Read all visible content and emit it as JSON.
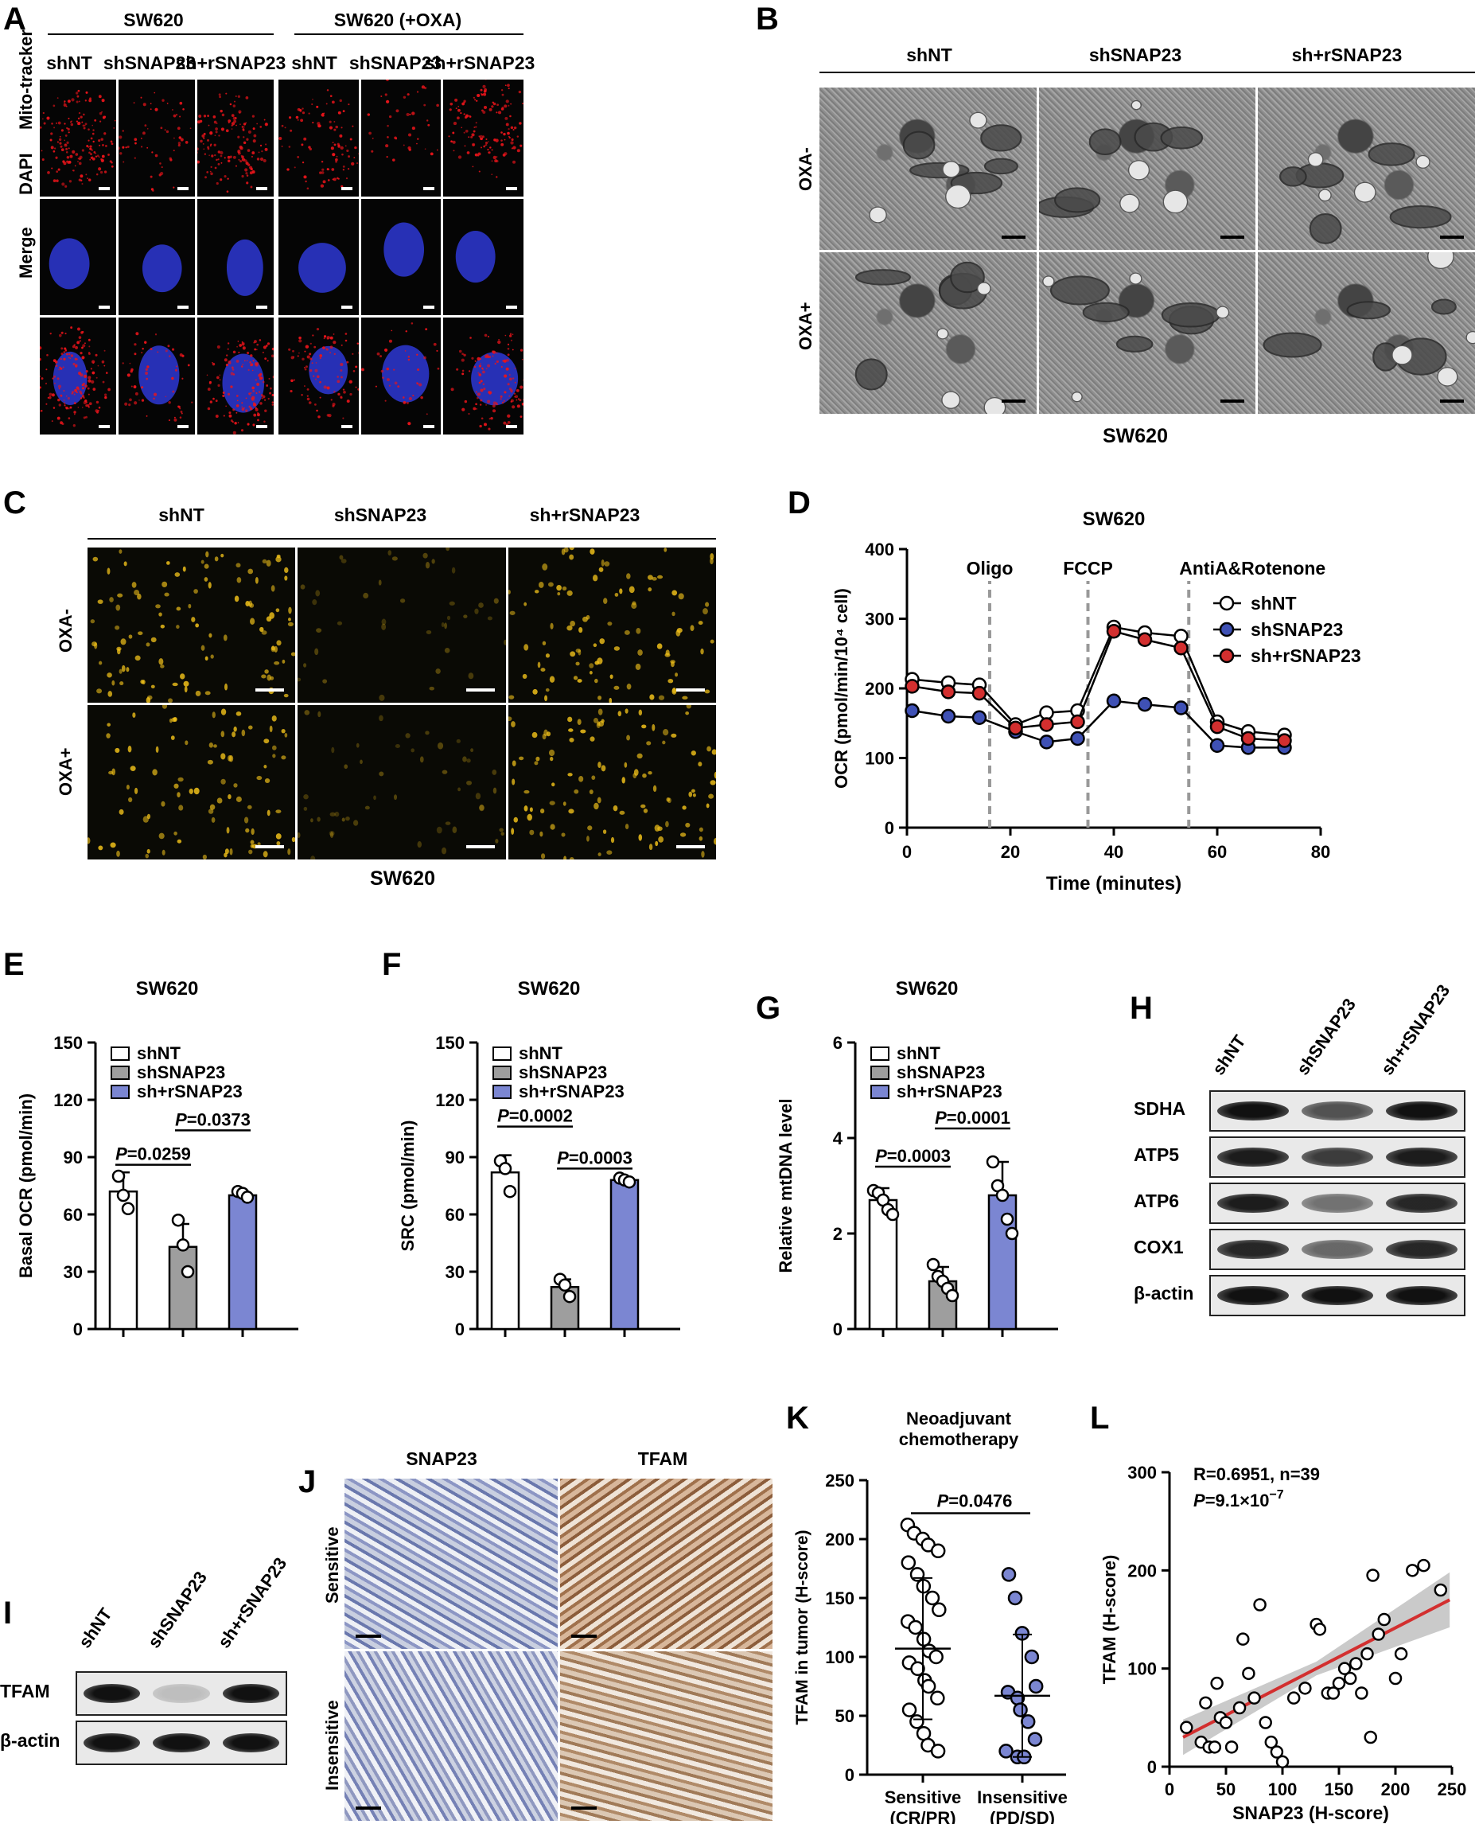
{
  "panels": {
    "A": {
      "letter": "A",
      "group1": "SW620",
      "group2": "SW620 (+OXA)",
      "cols": [
        "shNT",
        "shSNAP23",
        "sh+rSNAP23",
        "shNT",
        "shSNAP23",
        "sh+rSNAP23"
      ],
      "rows": [
        "Mito-tracker",
        "DAPI",
        "Merge"
      ],
      "colors": {
        "mito": "#e8141a",
        "dapi": "#2b35c9"
      }
    },
    "B": {
      "letter": "B",
      "cols": [
        "shNT",
        "shSNAP23",
        "sh+rSNAP23"
      ],
      "rows": [
        "OXA-",
        "OXA+"
      ],
      "caption": "SW620"
    },
    "C": {
      "letter": "C",
      "cols": [
        "shNT",
        "shSNAP23",
        "sh+rSNAP23"
      ],
      "rows": [
        "OXA-",
        "OXA+"
      ],
      "caption": "SW620",
      "colors": {
        "dots": "#f2c21a"
      }
    },
    "H": {
      "letter": "H",
      "lanes": [
        "shNT",
        "shSNAP23",
        "sh+rSNAP23"
      ],
      "rows": [
        "SDHA",
        "ATP5",
        "ATP6",
        "COX1",
        "β-actin"
      ]
    },
    "I": {
      "letter": "I",
      "lanes": [
        "shNT",
        "shSNAP23",
        "sh+rSNAP23"
      ],
      "rows": [
        "TFAM",
        "β-actin"
      ]
    },
    "J": {
      "letter": "J",
      "cols": [
        "SNAP23",
        "TFAM"
      ],
      "rows": [
        "Sensitive",
        "Insensitive"
      ]
    }
  },
  "chart_data": [
    {
      "id": "D",
      "letter": "D",
      "type": "line",
      "title": "SW620",
      "xlabel": "Time (minutes)",
      "ylabel": "OCR (pmol/min/10⁴ cell)",
      "xlim": [
        0,
        80
      ],
      "ylim": [
        0,
        400
      ],
      "xticks": [
        "0",
        "20",
        "40",
        "60",
        "80"
      ],
      "yticks": [
        "0",
        "100",
        "200",
        "300",
        "400"
      ],
      "annotations": [
        {
          "text": "Oligo",
          "x": 16
        },
        {
          "text": "FCCP",
          "x": 35
        },
        {
          "text": "AntiA&Rotenone",
          "x": 54.5
        }
      ],
      "x": [
        1,
        8,
        14,
        21,
        27,
        33,
        40,
        46,
        53,
        60,
        66,
        73
      ],
      "series": [
        {
          "name": "shNT",
          "color": "#ffffff",
          "values": [
            213,
            208,
            205,
            148,
            165,
            168,
            288,
            280,
            275,
            152,
            138,
            133
          ]
        },
        {
          "name": "shSNAP23",
          "color": "#3f51b5",
          "values": [
            168,
            160,
            158,
            138,
            123,
            128,
            182,
            177,
            172,
            118,
            115,
            115
          ]
        },
        {
          "name": "sh+rSNAP23",
          "color": "#d32f2f",
          "values": [
            203,
            195,
            193,
            143,
            148,
            152,
            282,
            270,
            258,
            145,
            128,
            125
          ]
        }
      ],
      "legend": "top-right"
    },
    {
      "id": "E",
      "letter": "E",
      "type": "bar",
      "title": "SW620",
      "ylabel": "Basal OCR (pmol/min)",
      "ylim": [
        0,
        150
      ],
      "yticks": [
        "0",
        "30",
        "60",
        "90",
        "120",
        "150"
      ],
      "categories": [
        "shNT",
        "shSNAP23",
        "sh+rSNAP23"
      ],
      "values": [
        72,
        43,
        70
      ],
      "errors": [
        10,
        12,
        2
      ],
      "points": [
        [
          80,
          70,
          63
        ],
        [
          57,
          44,
          30
        ],
        [
          72,
          71,
          69
        ]
      ],
      "colors": [
        "#ffffff",
        "#9e9e9e",
        "#7b86d2"
      ],
      "pvalues": [
        {
          "italic": "P",
          "text": "=0.0259",
          "from": 0,
          "to": 1,
          "y": 86
        },
        {
          "italic": "P",
          "text": "=0.0373",
          "from": 1,
          "to": 2,
          "y": 104
        }
      ],
      "legend": "top-left"
    },
    {
      "id": "F",
      "letter": "F",
      "type": "bar",
      "title": "SW620",
      "ylabel": "SRC (pmol/min)",
      "ylim": [
        0,
        150
      ],
      "yticks": [
        "0",
        "30",
        "60",
        "90",
        "120",
        "150"
      ],
      "categories": [
        "shNT",
        "shSNAP23",
        "sh+rSNAP23"
      ],
      "values": [
        82,
        22,
        78
      ],
      "errors": [
        9,
        4,
        1
      ],
      "points": [
        [
          88,
          84,
          72
        ],
        [
          26,
          23,
          17
        ],
        [
          79,
          78,
          77
        ]
      ],
      "colors": [
        "#ffffff",
        "#9e9e9e",
        "#7b86d2"
      ],
      "pvalues": [
        {
          "italic": "P",
          "text": "=0.0002",
          "from": 0,
          "to": 1,
          "y": 106
        },
        {
          "italic": "P",
          "text": "=0.0003",
          "from": 1,
          "to": 2,
          "y": 84
        }
      ],
      "legend": "top-left"
    },
    {
      "id": "G",
      "letter": "G",
      "type": "bar",
      "title": "SW620",
      "ylabel": "Relative mtDNA level",
      "ylim": [
        0,
        6
      ],
      "yticks": [
        "0",
        "2",
        "4",
        "6"
      ],
      "categories": [
        "shNT",
        "shSNAP23",
        "sh+rSNAP23"
      ],
      "values": [
        2.7,
        1.0,
        2.8
      ],
      "errors": [
        0.25,
        0.3,
        0.7
      ],
      "points": [
        [
          2.9,
          2.85,
          2.7,
          2.5,
          2.4
        ],
        [
          1.35,
          1.1,
          1.0,
          0.85,
          0.7
        ],
        [
          3.5,
          3.0,
          2.8,
          2.3,
          2.0
        ]
      ],
      "colors": [
        "#ffffff",
        "#9e9e9e",
        "#7b86d2"
      ],
      "pvalues": [
        {
          "italic": "P",
          "text": "=0.0003",
          "from": 0,
          "to": 1,
          "y": 3.4
        },
        {
          "italic": "P",
          "text": "=0.0001",
          "from": 1,
          "to": 2,
          "y": 4.2
        }
      ],
      "legend": "top-left"
    },
    {
      "id": "K",
      "letter": "K",
      "type": "scatter",
      "title": "Neoadjuvant chemotherapy",
      "ylabel": "TFAM in tumor (H-score)",
      "ylim": [
        0,
        250
      ],
      "yticks": [
        "0",
        "50",
        "100",
        "150",
        "200",
        "250"
      ],
      "categories": [
        "Sensitive (CR/PR)",
        "Insensitive (PD/SD)"
      ],
      "means": [
        107,
        67
      ],
      "sd": [
        60,
        52
      ],
      "points": [
        [
          212,
          205,
          200,
          195,
          190,
          180,
          170,
          160,
          150,
          140,
          130,
          125,
          115,
          105,
          100,
          95,
          90,
          80,
          75,
          65,
          55,
          45,
          35,
          25,
          20
        ],
        [
          170,
          150,
          120,
          100,
          75,
          70,
          65,
          55,
          45,
          30,
          20,
          15,
          15
        ]
      ],
      "colors": [
        "#ffffff",
        "#7b86d2"
      ],
      "pvalue": {
        "italic": "P",
        "text": "=0.0476"
      }
    },
    {
      "id": "L",
      "letter": "L",
      "type": "scatter",
      "xlabel": "SNAP23 (H-score)",
      "ylabel": "TFAM (H-score)",
      "xlim": [
        0,
        250
      ],
      "ylim": [
        0,
        300
      ],
      "xticks": [
        "0",
        "50",
        "100",
        "150",
        "200",
        "250"
      ],
      "yticks": [
        "0",
        "100",
        "200",
        "300"
      ],
      "annotation_r": "R=0.6951, n=39",
      "annotation_p_italic": "P",
      "annotation_p": "=9.1×10",
      "annotation_p_exp": "−7",
      "fit": {
        "x": [
          12,
          248
        ],
        "y": [
          30,
          170
        ]
      },
      "x": [
        15,
        28,
        32,
        35,
        40,
        42,
        45,
        50,
        55,
        62,
        65,
        70,
        75,
        80,
        85,
        90,
        95,
        100,
        110,
        120,
        130,
        133,
        140,
        145,
        150,
        155,
        160,
        165,
        170,
        175,
        178,
        180,
        185,
        190,
        200,
        205,
        215,
        225,
        240
      ],
      "y": [
        40,
        25,
        65,
        20,
        20,
        85,
        50,
        45,
        20,
        60,
        130,
        95,
        70,
        165,
        45,
        25,
        15,
        5,
        70,
        80,
        145,
        140,
        75,
        75,
        85,
        100,
        90,
        105,
        75,
        115,
        30,
        195,
        135,
        150,
        90,
        115,
        200,
        205,
        180
      ],
      "colors": {
        "fit": "#d32f2f",
        "band": "#bdbdbd"
      }
    }
  ]
}
